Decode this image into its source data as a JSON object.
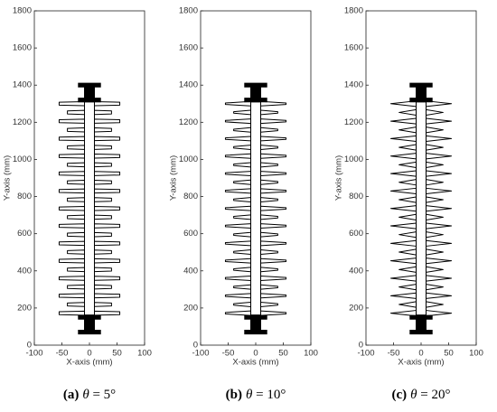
{
  "chart_data": [
    {
      "type": "profile",
      "x_label": "X-axis (mm)",
      "y_label": "Y-axis (mm)",
      "xlim": [
        -100,
        100
      ],
      "xticks": [
        -100,
        -50,
        0,
        50,
        100
      ],
      "ylim": [
        0,
        1800
      ],
      "yticks": [
        0,
        200,
        400,
        600,
        800,
        1000,
        1200,
        1400,
        1600,
        1800
      ],
      "caption": {
        "label": "(a)",
        "symbol": "θ",
        "text": " = 5°"
      },
      "core_radius": 9,
      "shed_root_thickness": 22,
      "shed_tip_thickness": 16,
      "shed_y": [
        1300,
        1253,
        1206,
        1159,
        1112,
        1065,
        1018,
        971,
        924,
        877,
        830,
        783,
        736,
        689,
        642,
        595,
        548,
        501,
        454,
        407,
        360,
        313,
        266,
        219,
        172
      ],
      "shed_radius": [
        55,
        40,
        55,
        40,
        55,
        40,
        55,
        40,
        55,
        40,
        55,
        40,
        55,
        40,
        55,
        40,
        55,
        40,
        55,
        40,
        55,
        40,
        55,
        40,
        55
      ],
      "fittings": [
        [
          1310,
          1410
        ],
        [
          60,
          160
        ]
      ],
      "fitting_half_width": 20
    },
    {
      "type": "profile",
      "x_label": "X-axis (mm)",
      "y_label": "Y-axis (mm)",
      "xlim": [
        -100,
        100
      ],
      "xticks": [
        -100,
        -50,
        0,
        50,
        100
      ],
      "ylim": [
        0,
        1800
      ],
      "yticks": [
        0,
        200,
        400,
        600,
        800,
        1000,
        1200,
        1400,
        1600,
        1800
      ],
      "caption": {
        "label": "(b)",
        "symbol": "θ",
        "text": " = 10°"
      },
      "core_radius": 9,
      "shed_root_thickness": 24,
      "shed_tip_thickness": 8,
      "shed_y": [
        1300,
        1253,
        1206,
        1159,
        1112,
        1065,
        1018,
        971,
        924,
        877,
        830,
        783,
        736,
        689,
        642,
        595,
        548,
        501,
        454,
        407,
        360,
        313,
        266,
        219,
        172
      ],
      "shed_radius": [
        55,
        40,
        55,
        40,
        55,
        40,
        55,
        40,
        55,
        40,
        55,
        40,
        55,
        40,
        55,
        40,
        55,
        40,
        55,
        40,
        55,
        40,
        55,
        40,
        55
      ],
      "fittings": [
        [
          1310,
          1410
        ],
        [
          60,
          160
        ]
      ],
      "fitting_half_width": 20
    },
    {
      "type": "profile",
      "x_label": "X-axis (mm)",
      "y_label": "Y-axis (mm)",
      "xlim": [
        -100,
        100
      ],
      "xticks": [
        -100,
        -50,
        0,
        50,
        100
      ],
      "ylim": [
        0,
        1800
      ],
      "yticks": [
        0,
        200,
        400,
        600,
        800,
        1000,
        1200,
        1400,
        1600,
        1800
      ],
      "caption": {
        "label": "(c)",
        "symbol": "θ",
        "text": " = 20°"
      },
      "core_radius": 9,
      "shed_root_thickness": 30,
      "shed_tip_thickness": 0,
      "shed_y": [
        1300,
        1253,
        1206,
        1159,
        1112,
        1065,
        1018,
        971,
        924,
        877,
        830,
        783,
        736,
        689,
        642,
        595,
        548,
        501,
        454,
        407,
        360,
        313,
        266,
        219,
        172
      ],
      "shed_radius": [
        55,
        40,
        55,
        40,
        55,
        40,
        55,
        40,
        55,
        40,
        55,
        40,
        55,
        40,
        55,
        40,
        55,
        40,
        55,
        40,
        55,
        40,
        55,
        40,
        55
      ],
      "fittings": [
        [
          1310,
          1410
        ],
        [
          60,
          160
        ]
      ],
      "fitting_half_width": 20
    }
  ]
}
